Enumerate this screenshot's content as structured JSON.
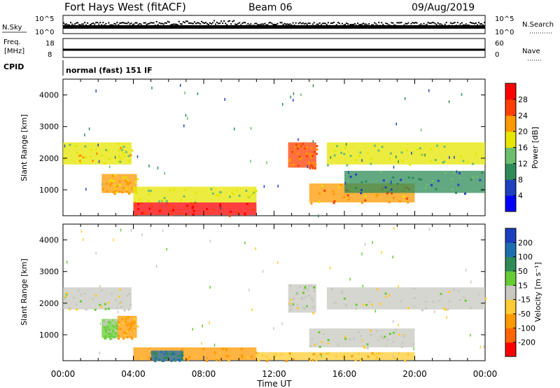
{
  "header": {
    "title": "Fort Hays West (fitACF)",
    "beam": "Beam 06",
    "date": "09/Aug/2019"
  },
  "noise_panel": {
    "left_label": "N.Sky",
    "left_ticks": [
      "10^5",
      "10^0"
    ],
    "right_ticks": [
      "10^5",
      "10^0"
    ],
    "right_label": "N.Search"
  },
  "freq_panel": {
    "left_label_1": "Freq.",
    "left_label_2": "[MHz]",
    "left_ticks": [
      "18",
      "8"
    ],
    "right_ticks": [
      "60",
      "0"
    ],
    "right_label": "Nave"
  },
  "cpid_panel": {
    "label": "CPID",
    "text": "normal (fast) 151 IF"
  },
  "chart_data": [
    {
      "type": "heatmap",
      "title": "Power",
      "ylabel": "Slant Range [km]",
      "ylim": [
        180,
        4500
      ],
      "yticks": [
        "1000",
        "2000",
        "3000",
        "4000"
      ],
      "xlabel": "Time UT",
      "xlim_hours": [
        0,
        24
      ],
      "xticks": [
        "00:00",
        "04:00",
        "08:00",
        "12:00",
        "16:00",
        "20:00",
        "00:00"
      ],
      "colorbar_label": "Power [dB]",
      "colorbar_ticks": [
        "4",
        "8",
        "12",
        "16",
        "20",
        "24",
        "28"
      ],
      "colorbar_colors": [
        "#0000ff",
        "#2040c0",
        "#2e8b57",
        "#6dbf6d",
        "#e6e600",
        "#ff9900",
        "#ff4000",
        "#ff0000"
      ],
      "echo_regions": [
        {
          "t0": 0.0,
          "t1": 3.9,
          "r0": 1800,
          "r1": 2500,
          "level": 16
        },
        {
          "t0": 2.2,
          "t1": 4.2,
          "r0": 900,
          "r1": 1500,
          "level": 18
        },
        {
          "t0": 4.0,
          "t1": 11.0,
          "r0": 600,
          "r1": 1100,
          "level": 14
        },
        {
          "t0": 4.0,
          "t1": 11.0,
          "r0": 200,
          "r1": 600,
          "level": 26
        },
        {
          "t0": 12.8,
          "t1": 14.4,
          "r0": 1700,
          "r1": 2500,
          "level": 22
        },
        {
          "t0": 14.0,
          "t1": 20.0,
          "r0": 600,
          "r1": 1200,
          "level": 20
        },
        {
          "t0": 15.0,
          "t1": 24.0,
          "r0": 1800,
          "r1": 2500,
          "level": 14
        },
        {
          "t0": 16.0,
          "t1": 24.0,
          "r0": 900,
          "r1": 1600,
          "level": 8
        }
      ]
    },
    {
      "type": "heatmap",
      "title": "Velocity",
      "ylabel": "Slant Range [km]",
      "ylim": [
        180,
        4500
      ],
      "yticks": [
        "1000",
        "2000",
        "3000",
        "4000"
      ],
      "xlabel": "Time UT",
      "xlim_hours": [
        0,
        24
      ],
      "xticks": [
        "00:00",
        "04:00",
        "08:00",
        "12:00",
        "16:00",
        "20:00",
        "00:00"
      ],
      "colorbar_label": "Velocity [m s⁻¹]",
      "colorbar_ticks": [
        "200",
        "100",
        "50",
        "15",
        "-15",
        "-50",
        "-100",
        "-200"
      ],
      "colorbar_colors": [
        "#1a3fbf",
        "#1e6fb0",
        "#2e8b57",
        "#66cc33",
        "#c8c8c0",
        "#ffcc33",
        "#ff9900",
        "#ff6600",
        "#ff0000"
      ],
      "echo_regions": [
        {
          "t0": 0.0,
          "t1": 3.9,
          "r0": 1800,
          "r1": 2500,
          "level": 0
        },
        {
          "t0": 2.2,
          "t1": 3.1,
          "r0": 900,
          "r1": 1500,
          "level": 20
        },
        {
          "t0": 3.1,
          "t1": 4.2,
          "r0": 900,
          "r1": 1600,
          "level": -60
        },
        {
          "t0": 4.0,
          "t1": 11.0,
          "r0": 200,
          "r1": 600,
          "level": -60
        },
        {
          "t0": 5.0,
          "t1": 6.8,
          "r0": 200,
          "r1": 500,
          "level": 100
        },
        {
          "t0": 12.8,
          "t1": 14.4,
          "r0": 1700,
          "r1": 2600,
          "level": 0
        },
        {
          "t0": 14.0,
          "t1": 20.0,
          "r0": 600,
          "r1": 1200,
          "level": 0
        },
        {
          "t0": 15.0,
          "t1": 24.0,
          "r0": 1800,
          "r1": 2500,
          "level": 0
        },
        {
          "t0": 11.0,
          "t1": 20.0,
          "r0": 200,
          "r1": 450,
          "level": -40
        }
      ]
    }
  ]
}
